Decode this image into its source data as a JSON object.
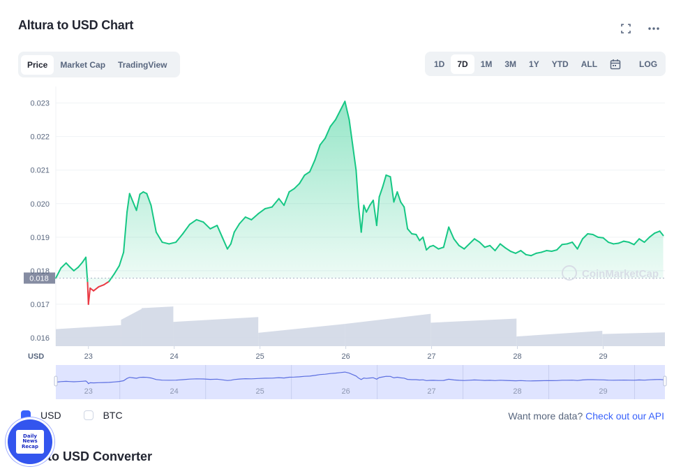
{
  "title": "Altura to USD Chart",
  "header_icons": [
    "expand-icon",
    "more-dots-icon"
  ],
  "view_tabs": [
    {
      "label": "Price",
      "active": true
    },
    {
      "label": "Market Cap",
      "active": false
    },
    {
      "label": "TradingView",
      "active": false
    }
  ],
  "time_ranges": [
    {
      "label": "1D",
      "active": false
    },
    {
      "label": "7D",
      "active": true
    },
    {
      "label": "1M",
      "active": false
    },
    {
      "label": "3M",
      "active": false
    },
    {
      "label": "1Y",
      "active": false
    },
    {
      "label": "YTD",
      "active": false
    },
    {
      "label": "ALL",
      "active": false
    }
  ],
  "calendar_icon": "calendar-icon",
  "log_label": "LOG",
  "colors": {
    "up": "#16c784",
    "down": "#ea3943",
    "volume": "#cfd6e4",
    "navigator": "#5b6ee0",
    "navigator_fill": "#dfe4ff",
    "accent": "#3861fb"
  },
  "chart_data": {
    "type": "line",
    "x_tick_labels": [
      "23",
      "24",
      "25",
      "26",
      "27",
      "28",
      "29"
    ],
    "x_axis_unit_label": "USD",
    "y_tick_labels": [
      "0.016",
      "0.017",
      "0.018",
      "0.019",
      "0.020",
      "0.021",
      "0.022",
      "0.023"
    ],
    "ylim": [
      0.01575,
      0.02345
    ],
    "xlim": [
      22.62,
      29.72
    ],
    "baseline": 0.01778,
    "baseline_label": "0.018",
    "watermark": "CoinMarketCap",
    "grid": true,
    "series": [
      {
        "x": [
          22.62,
          22.68,
          22.74,
          22.78,
          22.83,
          22.88,
          22.93,
          22.97,
          22.99,
          23.0,
          23.02,
          23.06,
          23.12,
          23.18,
          23.24,
          23.3,
          23.36,
          23.41,
          23.45,
          23.48,
          23.52,
          23.56,
          23.6,
          23.64,
          23.68,
          23.73,
          23.79,
          23.86,
          23.94,
          24.02,
          24.1,
          24.18,
          24.26,
          24.34,
          24.42,
          24.5,
          24.56,
          24.62,
          24.66,
          24.7,
          24.76,
          24.83,
          24.9,
          24.98,
          25.06,
          25.14,
          25.22,
          25.28,
          25.34,
          25.4,
          25.46,
          25.52,
          25.58,
          25.64,
          25.7,
          25.76,
          25.82,
          25.88,
          25.94,
          25.99,
          26.04,
          26.08,
          26.12,
          26.15,
          26.18,
          26.21,
          26.24,
          26.28,
          26.32,
          26.36,
          26.39,
          26.43,
          26.47,
          26.52,
          26.56,
          26.6,
          26.64,
          26.68,
          26.72,
          26.77,
          26.82,
          26.86,
          26.9,
          26.94,
          26.98,
          27.02,
          27.08,
          27.14,
          27.2,
          27.26,
          27.32,
          27.38,
          27.44,
          27.5,
          27.56,
          27.62,
          27.68,
          27.74,
          27.8,
          27.86,
          27.92,
          27.98,
          28.04,
          28.1,
          28.16,
          28.22,
          28.28,
          28.34,
          28.4,
          28.46,
          28.52,
          28.58,
          28.64,
          28.7,
          28.76,
          28.82,
          28.88,
          28.94,
          29.0,
          29.06,
          29.12,
          29.18,
          29.24,
          29.3,
          29.36,
          29.42,
          29.48,
          29.54,
          29.6,
          29.66,
          29.7
        ],
        "values": [
          0.01778,
          0.01808,
          0.01823,
          0.01812,
          0.018,
          0.0181,
          0.01825,
          0.0184,
          0.01765,
          0.017,
          0.01748,
          0.0174,
          0.01752,
          0.01758,
          0.01768,
          0.0179,
          0.01815,
          0.01855,
          0.01975,
          0.0203,
          0.02005,
          0.0198,
          0.02028,
          0.02035,
          0.0203,
          0.01995,
          0.01915,
          0.01885,
          0.0188,
          0.01885,
          0.0191,
          0.01938,
          0.01952,
          0.01945,
          0.01925,
          0.01935,
          0.019,
          0.01865,
          0.0188,
          0.01915,
          0.0194,
          0.0196,
          0.01952,
          0.0197,
          0.01985,
          0.0199,
          0.02015,
          0.01995,
          0.02035,
          0.02045,
          0.0206,
          0.02085,
          0.02095,
          0.0213,
          0.02175,
          0.02195,
          0.0223,
          0.0225,
          0.0228,
          0.02305,
          0.0225,
          0.02175,
          0.021,
          0.0199,
          0.01915,
          0.01995,
          0.01975,
          0.01995,
          0.0201,
          0.01935,
          0.0202,
          0.0205,
          0.02085,
          0.0208,
          0.02005,
          0.02035,
          0.02005,
          0.0199,
          0.01925,
          0.0191,
          0.01908,
          0.0189,
          0.019,
          0.01862,
          0.01872,
          0.01875,
          0.01865,
          0.0187,
          0.0193,
          0.01895,
          0.01875,
          0.01865,
          0.0188,
          0.01895,
          0.01885,
          0.0187,
          0.01875,
          0.0186,
          0.0188,
          0.01868,
          0.01858,
          0.01852,
          0.0186,
          0.01848,
          0.01845,
          0.01852,
          0.01855,
          0.0186,
          0.01858,
          0.01862,
          0.01878,
          0.0188,
          0.01885,
          0.01865,
          0.01895,
          0.0191,
          0.01908,
          0.019,
          0.01898,
          0.01885,
          0.0188,
          0.01882,
          0.01888,
          0.01885,
          0.01878,
          0.01895,
          0.01885,
          0.019,
          0.01912,
          0.01918,
          0.01905
        ]
      }
    ],
    "volume_steps": [
      {
        "x": [
          22.62,
          23.38
        ],
        "v": [
          0.42,
          0.52
        ]
      },
      {
        "x": [
          23.38,
          23.62
        ],
        "v": [
          0.65,
          0.92
        ]
      },
      {
        "x": [
          23.62,
          23.99
        ],
        "v": [
          0.94,
          0.98
        ]
      },
      {
        "x": [
          23.99,
          24.98
        ],
        "v": [
          0.6,
          0.72
        ]
      },
      {
        "x": [
          24.98,
          25.99
        ],
        "v": [
          0.33,
          0.55
        ]
      },
      {
        "x": [
          25.99,
          26.99
        ],
        "v": [
          0.55,
          0.8
        ]
      },
      {
        "x": [
          26.99,
          27.99
        ],
        "v": [
          0.58,
          0.68
        ]
      },
      {
        "x": [
          27.99,
          28.99
        ],
        "v": [
          0.24,
          0.38
        ]
      },
      {
        "x": [
          28.99,
          29.72
        ],
        "v": [
          0.3,
          0.34
        ]
      }
    ]
  },
  "legend": [
    {
      "label": "USD",
      "checked": true
    },
    {
      "label": "BTC",
      "checked": false
    }
  ],
  "api_prompt": "Want more data?",
  "api_link": "Check out our API",
  "converter_title": "ALU to USD Converter",
  "badge_text": [
    "Daily",
    "News",
    "Recap"
  ]
}
